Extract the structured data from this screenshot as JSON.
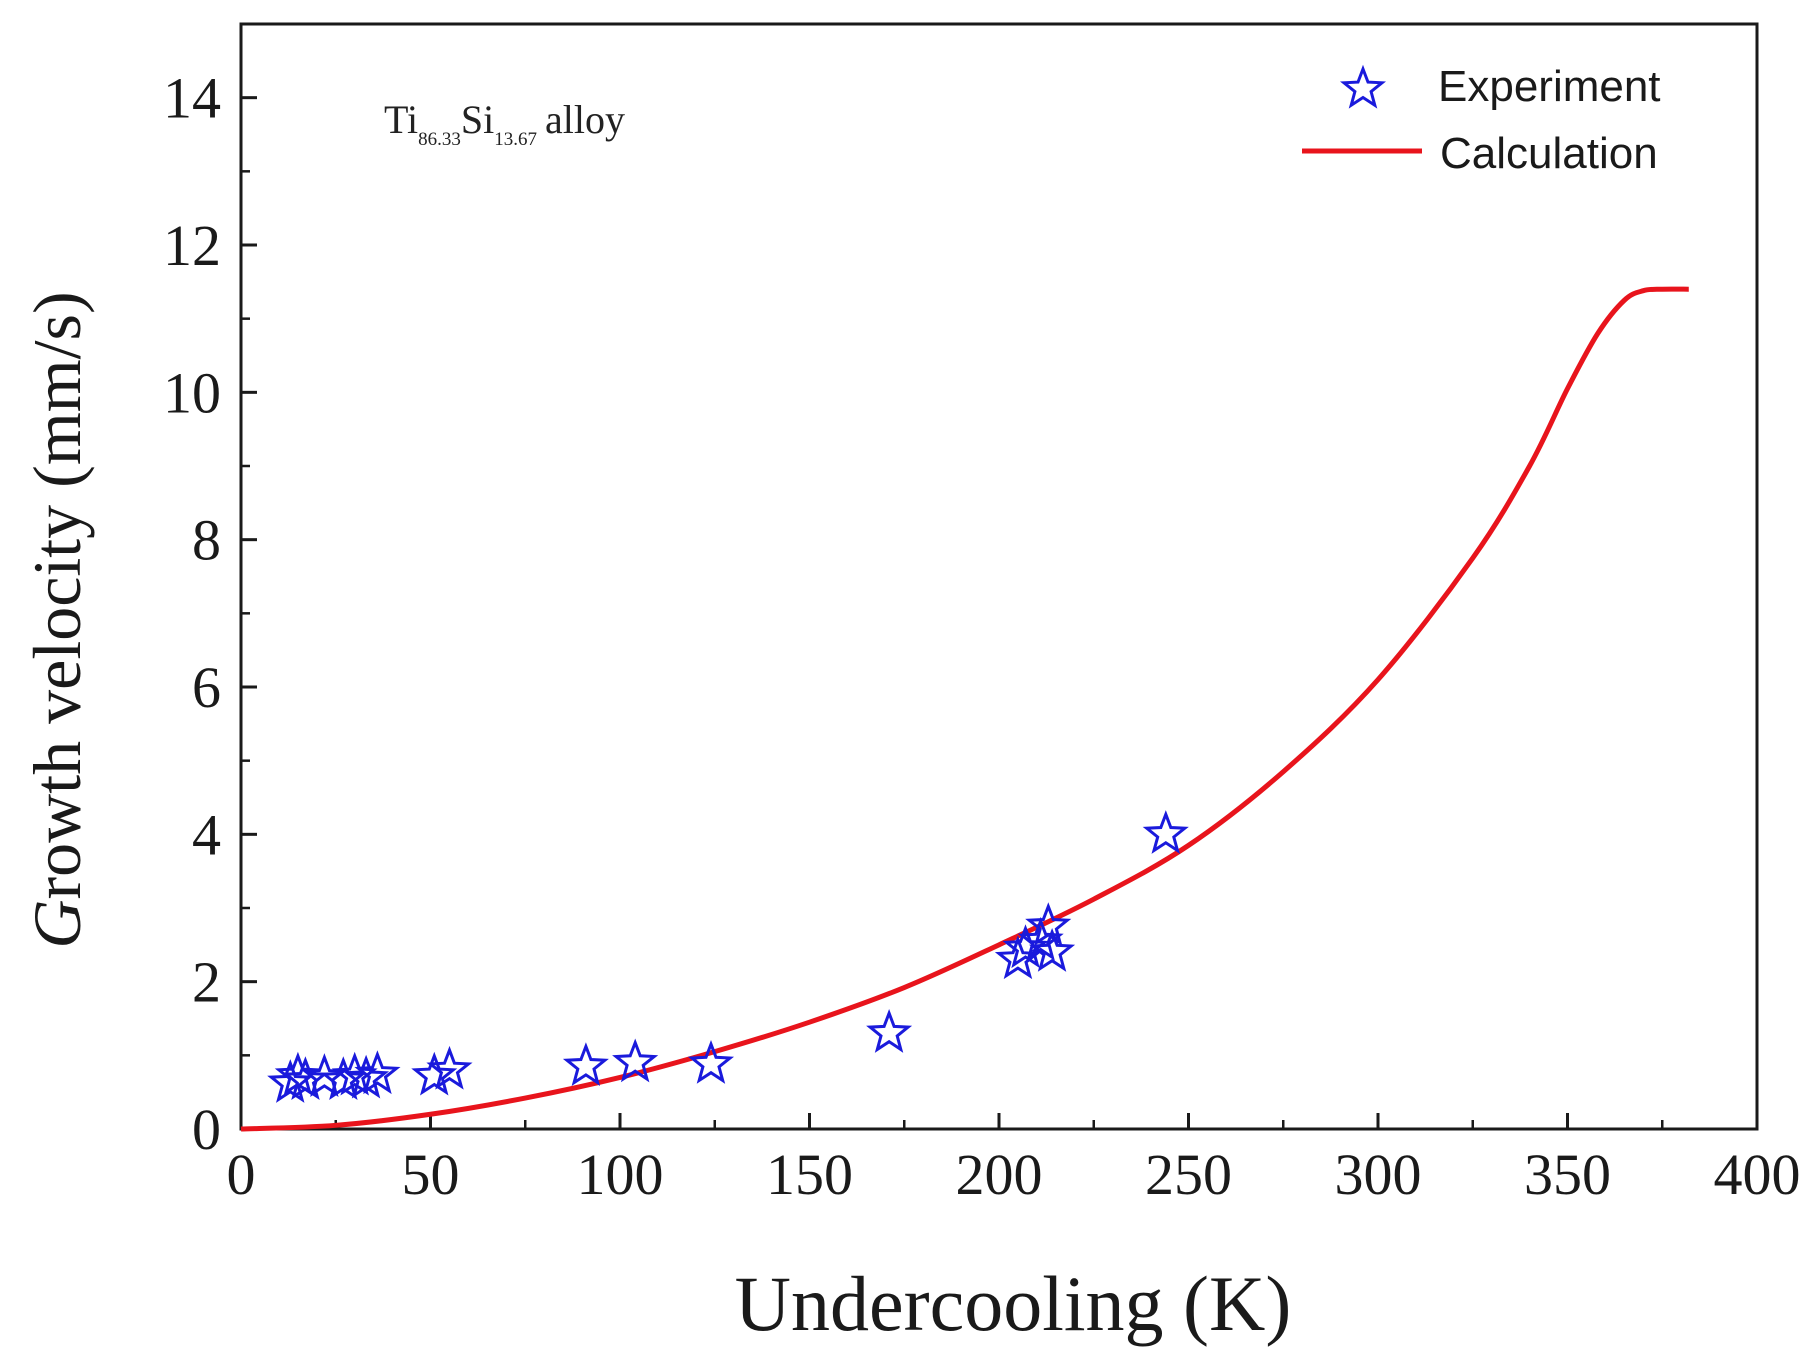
{
  "chart_data": {
    "type": "scatter",
    "title": "",
    "xlabel": "Undercooling (K)",
    "ylabel_italic": "G",
    "ylabel_rest": "rowth velocity (mm/s)",
    "xlim": [
      0,
      400
    ],
    "ylim": [
      0,
      15
    ],
    "xticks": [
      0,
      50,
      100,
      150,
      200,
      250,
      300,
      350,
      400
    ],
    "yticks": [
      0,
      2,
      4,
      6,
      8,
      10,
      12,
      14
    ],
    "x_minor_step": 25,
    "y_minor_step": 1,
    "grid": false,
    "legend_position": "top-right",
    "annotation": {
      "base1": "Ti",
      "sub1": "86.33",
      "base2": "Si",
      "sub2": "13.67",
      "rest": "alloy"
    },
    "series": [
      {
        "name": "Experiment",
        "kind": "markers",
        "marker": "star-open",
        "color": "#1a1adc",
        "x": [
          13,
          15,
          17,
          22,
          27,
          30,
          33,
          36,
          51,
          55,
          91,
          104,
          124,
          171,
          205,
          207,
          211,
          213,
          214,
          244
        ],
        "y": [
          0.62,
          0.72,
          0.66,
          0.7,
          0.66,
          0.72,
          0.68,
          0.74,
          0.72,
          0.8,
          0.85,
          0.9,
          0.88,
          1.3,
          2.3,
          2.45,
          2.55,
          2.75,
          2.4,
          4.0
        ]
      },
      {
        "name": "Calculation",
        "kind": "line",
        "color": "#e8141c",
        "x": [
          0,
          25,
          50,
          75,
          100,
          125,
          150,
          175,
          200,
          225,
          250,
          275,
          300,
          325,
          340,
          350,
          358,
          365,
          370,
          375,
          382
        ],
        "y": [
          0,
          0.05,
          0.2,
          0.42,
          0.7,
          1.05,
          1.45,
          1.92,
          2.5,
          3.12,
          3.85,
          4.85,
          6.1,
          7.75,
          9.0,
          10.05,
          10.8,
          11.25,
          11.38,
          11.4,
          11.4
        ]
      }
    ]
  }
}
